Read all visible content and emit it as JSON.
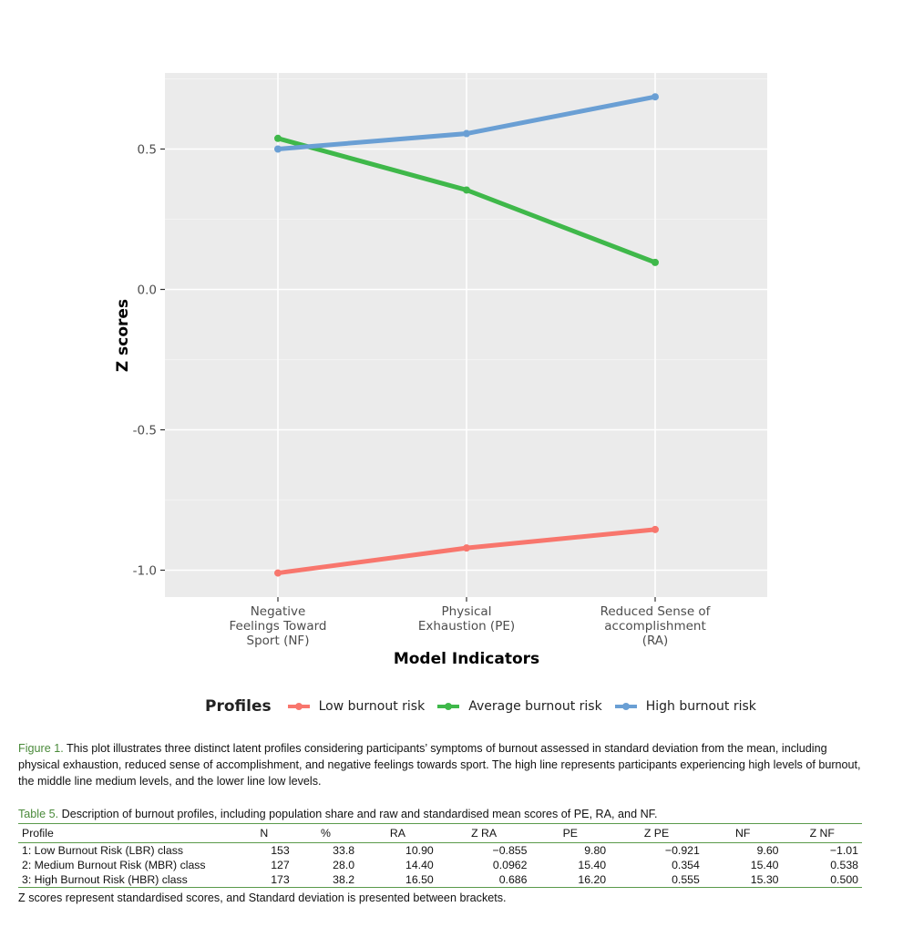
{
  "chart_data": {
    "type": "line",
    "categories": [
      "Negative Feelings Toward Sport (NF)",
      "Physical Exhaustion (PE)",
      "Reduced Sense of accomplishment (RA)"
    ],
    "category_label_lines": [
      [
        "Negative",
        "Feelings Toward",
        "Sport (NF)"
      ],
      [
        "Physical",
        "Exhaustion (PE)"
      ],
      [
        "Reduced Sense of",
        "accomplishment",
        "(RA)"
      ]
    ],
    "series": [
      {
        "name": "Low burnout risk",
        "color": "#f8766d",
        "values": [
          -1.01,
          -0.921,
          -0.855
        ]
      },
      {
        "name": "Average burnout risk",
        "color": "#3fb84a",
        "values": [
          0.538,
          0.354,
          0.0962
        ]
      },
      {
        "name": "High burnout risk",
        "color": "#6a9fd4",
        "values": [
          0.5,
          0.555,
          0.686
        ]
      }
    ],
    "xlabel": "Model Indicators",
    "ylabel": "Z scores",
    "ylim": [
      -1.1,
      0.75
    ],
    "yticks": [
      -1.0,
      -0.5,
      0.0,
      0.5
    ],
    "ytick_labels": [
      "-1.0",
      "-0.5",
      "0.0",
      "0.5"
    ],
    "legend_title": "Profiles",
    "legend_position": "bottom",
    "grid": true
  },
  "legend": {
    "title": "Profiles",
    "items": [
      "Low burnout risk",
      "Average burnout risk",
      "High burnout risk"
    ],
    "colors": [
      "#f8766d",
      "#3fb84a",
      "#6a9fd4"
    ]
  },
  "caption": {
    "label": "Figure 1.",
    "text": " This plot illustrates three distinct latent profiles considering participants’ symptoms of burnout assessed in standard deviation from the mean, including physical exhaustion, reduced sense of accomplishment, and negative feelings towards sport. The high line represents participants experiencing high levels of burnout, the middle line medium levels, and the lower line low levels."
  },
  "table": {
    "label": "Table 5.",
    "title": " Description of burnout profiles, including population share and raw and standardised mean scores of PE, RA, and NF.",
    "headers": [
      "Profile",
      "N",
      "%",
      "RA",
      "Z RA",
      "PE",
      "Z PE",
      "NF",
      "Z NF"
    ],
    "rows": [
      [
        "1: Low Burnout Risk (LBR) class",
        "153",
        "33.8",
        "10.90",
        "−0.855",
        "9.80",
        "−0.921",
        "9.60",
        "−1.01"
      ],
      [
        "2: Medium Burnout Risk (MBR) class",
        "127",
        "28.0",
        "14.40",
        "0.0962",
        "15.40",
        "0.354",
        "15.40",
        "0.538"
      ],
      [
        "3: High Burnout Risk (HBR) class",
        "173",
        "38.2",
        "16.50",
        "0.686",
        "16.20",
        "0.555",
        "15.30",
        "0.500"
      ]
    ],
    "note": "Z scores represent standardised scores, and Standard deviation is presented between brackets."
  }
}
